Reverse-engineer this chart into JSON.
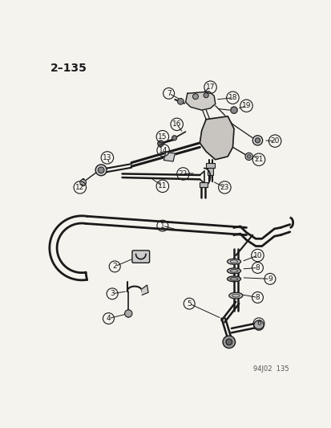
{
  "page_number": "2–135",
  "footer": "94J02  135",
  "bg": "#f5f3ee",
  "lc": "#1a1a1a",
  "fig_w": 4.14,
  "fig_h": 5.33,
  "dpi": 100
}
